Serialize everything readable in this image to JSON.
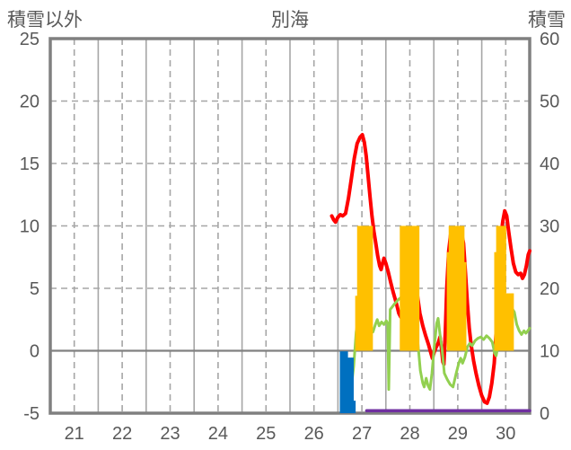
{
  "labels": {
    "left_axis_title": "積雪以外",
    "title": "別海",
    "right_axis_title": "積雪"
  },
  "colors": {
    "frame": "#808080",
    "grid": "#a6a6a6",
    "zero_line": "#808080",
    "text": "#595959",
    "red_line": "#ff0000",
    "green_line": "#92d050",
    "orange_bars": "#ffc000",
    "blue_bars": "#0070c0",
    "purple_line": "#7030a0"
  },
  "chart_data": {
    "type": "combo (line + bar)",
    "title": "別海",
    "x_axis": {
      "ticks": [
        21,
        22,
        23,
        24,
        25,
        26,
        27,
        28,
        29,
        30
      ],
      "range": [
        21,
        31
      ],
      "solid_gridlines_at_day_boundaries": true,
      "dashed_gridlines_at_half_days": true
    },
    "y_left": {
      "label": "積雪以外",
      "ticks": [
        25,
        20,
        15,
        10,
        5,
        0,
        -5
      ],
      "range": [
        -5,
        25
      ],
      "zero_line_solid": true
    },
    "y_right": {
      "label": "積雪",
      "ticks": [
        60,
        50,
        40,
        30,
        20,
        10,
        0
      ],
      "range": [
        0,
        60
      ]
    },
    "series": [
      {
        "name": "red-line",
        "type": "line",
        "axis": "left",
        "color": "#ff0000",
        "stroke_width": 4,
        "points": [
          [
            26.87,
            10.8
          ],
          [
            26.91,
            10.5
          ],
          [
            26.95,
            10.3
          ],
          [
            27.0,
            10.7
          ],
          [
            27.05,
            10.9
          ],
          [
            27.1,
            10.8
          ],
          [
            27.16,
            11.0
          ],
          [
            27.22,
            12.2
          ],
          [
            27.28,
            13.8
          ],
          [
            27.34,
            15.4
          ],
          [
            27.4,
            16.6
          ],
          [
            27.46,
            17.1
          ],
          [
            27.51,
            17.3
          ],
          [
            27.55,
            16.7
          ],
          [
            27.59,
            15.6
          ],
          [
            27.63,
            14.0
          ],
          [
            27.67,
            12.3
          ],
          [
            27.71,
            10.8
          ],
          [
            27.75,
            9.6
          ],
          [
            27.79,
            8.6
          ],
          [
            27.83,
            7.6
          ],
          [
            27.87,
            6.8
          ],
          [
            27.9,
            6.5
          ],
          [
            27.93,
            7.0
          ],
          [
            27.96,
            7.4
          ],
          [
            28.0,
            7.0
          ],
          [
            28.05,
            6.3
          ],
          [
            28.1,
            5.5
          ],
          [
            28.16,
            4.6
          ],
          [
            28.22,
            3.8
          ],
          [
            28.27,
            3.0
          ],
          [
            28.31,
            2.7
          ],
          [
            28.35,
            3.4
          ],
          [
            28.4,
            5.5
          ],
          [
            28.45,
            8.2
          ],
          [
            28.49,
            9.7
          ],
          [
            28.53,
            9.4
          ],
          [
            28.57,
            8.2
          ],
          [
            28.61,
            6.3
          ],
          [
            28.66,
            4.4
          ],
          [
            28.71,
            3.0
          ],
          [
            28.77,
            2.0
          ],
          [
            28.83,
            1.2
          ],
          [
            28.89,
            0.5
          ],
          [
            28.94,
            -0.2
          ],
          [
            28.97,
            -0.6
          ],
          [
            29.01,
            -0.1
          ],
          [
            29.05,
            0.3
          ],
          [
            29.09,
            0.6
          ],
          [
            29.13,
            1.1
          ],
          [
            29.16,
            0.2
          ],
          [
            29.19,
            -0.9
          ],
          [
            29.21,
            -1.1
          ],
          [
            29.24,
            1.5
          ],
          [
            29.27,
            5.0
          ],
          [
            29.31,
            8.0
          ],
          [
            29.35,
            9.3
          ],
          [
            29.4,
            9.5
          ],
          [
            29.45,
            9.1
          ],
          [
            29.5,
            8.9
          ],
          [
            29.54,
            9.3
          ],
          [
            29.58,
            9.4
          ],
          [
            29.62,
            8.6
          ],
          [
            29.66,
            6.3
          ],
          [
            29.7,
            3.8
          ],
          [
            29.74,
            1.8
          ],
          [
            29.78,
            0.4
          ],
          [
            29.83,
            -0.8
          ],
          [
            29.88,
            -1.8
          ],
          [
            29.94,
            -2.8
          ],
          [
            30.0,
            -3.6
          ],
          [
            30.06,
            -4.1
          ],
          [
            30.11,
            -4.2
          ],
          [
            30.16,
            -3.7
          ],
          [
            30.21,
            -2.6
          ],
          [
            30.26,
            -1.0
          ],
          [
            30.31,
            2.2
          ],
          [
            30.36,
            6.5
          ],
          [
            30.4,
            9.2
          ],
          [
            30.44,
            10.4
          ],
          [
            30.48,
            11.2
          ],
          [
            30.52,
            10.8
          ],
          [
            30.56,
            9.6
          ],
          [
            30.61,
            8.2
          ],
          [
            30.66,
            7.0
          ],
          [
            30.71,
            6.3
          ],
          [
            30.76,
            6.1
          ],
          [
            30.81,
            6.2
          ],
          [
            30.85,
            5.8
          ],
          [
            30.89,
            6.1
          ],
          [
            30.93,
            6.8
          ],
          [
            30.97,
            7.7
          ],
          [
            31.0,
            8.0
          ]
        ]
      },
      {
        "name": "green-line",
        "type": "line",
        "axis": "left",
        "color": "#92d050",
        "stroke_width": 3,
        "points": [
          [
            27.07,
            -3.4
          ],
          [
            27.1,
            -3.7
          ],
          [
            27.13,
            -3.1
          ],
          [
            27.16,
            -2.7
          ],
          [
            27.2,
            -3.3
          ],
          [
            27.24,
            -3.6
          ],
          [
            27.28,
            -2.9
          ],
          [
            27.33,
            -1.2
          ],
          [
            27.38,
            1.5
          ],
          [
            27.43,
            2.8
          ],
          [
            27.47,
            3.0
          ],
          [
            27.51,
            3.3
          ],
          [
            27.54,
            2.7
          ],
          [
            27.58,
            2.4
          ],
          [
            27.63,
            2.1
          ],
          [
            27.68,
            1.6
          ],
          [
            27.73,
            1.5
          ],
          [
            27.78,
            2.1
          ],
          [
            27.82,
            2.5
          ],
          [
            27.86,
            2.0
          ],
          [
            27.91,
            2.3
          ],
          [
            27.96,
            2.1
          ],
          [
            28.01,
            2.4
          ],
          [
            28.04,
            2.2
          ],
          [
            28.06,
            -3.1
          ],
          [
            28.09,
            3.3
          ],
          [
            28.13,
            3.5
          ],
          [
            28.19,
            3.8
          ],
          [
            28.26,
            4.1
          ],
          [
            28.33,
            4.3
          ],
          [
            28.4,
            4.0
          ],
          [
            28.46,
            4.4
          ],
          [
            28.52,
            4.1
          ],
          [
            28.57,
            3.6
          ],
          [
            28.62,
            2.4
          ],
          [
            28.67,
            0.5
          ],
          [
            28.72,
            -1.6
          ],
          [
            28.77,
            -2.6
          ],
          [
            28.8,
            -2.9
          ],
          [
            28.84,
            -2.2
          ],
          [
            28.88,
            -2.8
          ],
          [
            28.92,
            -3.1
          ],
          [
            28.96,
            -1.8
          ],
          [
            29.01,
            0.3
          ],
          [
            29.06,
            2.2
          ],
          [
            29.09,
            2.6
          ],
          [
            29.13,
            1.3
          ],
          [
            29.17,
            0.2
          ],
          [
            29.22,
            -1.8
          ],
          [
            29.28,
            -2.3
          ],
          [
            29.34,
            -2.7
          ],
          [
            29.4,
            -2.9
          ],
          [
            29.46,
            -1.9
          ],
          [
            29.52,
            -1.0
          ],
          [
            29.56,
            -0.6
          ],
          [
            29.6,
            -1.0
          ],
          [
            29.65,
            -0.5
          ],
          [
            29.7,
            0.3
          ],
          [
            29.75,
            0.6
          ],
          [
            29.8,
            0.4
          ],
          [
            29.86,
            0.8
          ],
          [
            29.92,
            1.0
          ],
          [
            29.98,
            1.1
          ],
          [
            30.04,
            0.9
          ],
          [
            30.1,
            1.2
          ],
          [
            30.16,
            1.0
          ],
          [
            30.22,
            0.7
          ],
          [
            30.27,
            -0.2
          ],
          [
            30.3,
            -0.4
          ],
          [
            30.35,
            0.6
          ],
          [
            30.4,
            1.8
          ],
          [
            30.45,
            2.9
          ],
          [
            30.5,
            3.6
          ],
          [
            30.54,
            3.9
          ],
          [
            30.58,
            3.6
          ],
          [
            30.63,
            3.4
          ],
          [
            30.68,
            3.1
          ],
          [
            30.73,
            2.1
          ],
          [
            30.78,
            1.6
          ],
          [
            30.83,
            1.3
          ],
          [
            30.88,
            1.6
          ],
          [
            30.92,
            1.4
          ],
          [
            30.96,
            1.6
          ],
          [
            31.0,
            1.8
          ]
        ]
      },
      {
        "name": "orange-bars",
        "type": "bar",
        "axis": "left",
        "base_value": 0,
        "bar_width_days": 0.042,
        "color": "#ffc000",
        "points": [
          [
            27.36,
            4.4
          ],
          [
            27.4,
            10
          ],
          [
            27.44,
            10
          ],
          [
            27.48,
            10
          ],
          [
            27.52,
            10
          ],
          [
            27.56,
            10
          ],
          [
            27.6,
            10
          ],
          [
            27.64,
            10
          ],
          [
            27.68,
            10
          ],
          [
            28.29,
            10
          ],
          [
            28.33,
            10
          ],
          [
            28.37,
            10
          ],
          [
            28.41,
            10
          ],
          [
            28.45,
            10
          ],
          [
            28.49,
            10
          ],
          [
            28.53,
            10
          ],
          [
            28.57,
            10
          ],
          [
            28.61,
            10
          ],
          [
            28.65,
            10
          ],
          [
            29.27,
            7.9
          ],
          [
            29.31,
            10
          ],
          [
            29.35,
            10
          ],
          [
            29.39,
            10
          ],
          [
            29.43,
            10
          ],
          [
            29.47,
            10
          ],
          [
            29.51,
            10
          ],
          [
            29.55,
            10
          ],
          [
            29.59,
            10
          ],
          [
            29.63,
            7.1
          ],
          [
            30.26,
            7.9
          ],
          [
            30.3,
            10
          ],
          [
            30.34,
            10
          ],
          [
            30.38,
            10
          ],
          [
            30.42,
            10
          ],
          [
            30.46,
            10
          ],
          [
            30.5,
            4.6
          ],
          [
            30.54,
            4.6
          ],
          [
            30.58,
            4.6
          ],
          [
            30.62,
            4.6
          ]
        ]
      },
      {
        "name": "blue-bars",
        "type": "bar",
        "axis": "right",
        "base_value": 0,
        "bar_width_days": 0.042,
        "color": "#0070c0",
        "points": [
          [
            27.04,
            9.9
          ],
          [
            27.08,
            9.9
          ],
          [
            27.12,
            9.9
          ],
          [
            27.16,
            9.9
          ],
          [
            27.2,
            8.9
          ],
          [
            27.24,
            8.9
          ],
          [
            27.28,
            8.9
          ],
          [
            27.32,
            2.0
          ]
        ]
      },
      {
        "name": "purple-line",
        "type": "line",
        "axis": "right",
        "color": "#7030a0",
        "stroke_width": 3.5,
        "points": [
          [
            27.6,
            0.4
          ],
          [
            31.0,
            0.4
          ]
        ]
      }
    ]
  }
}
